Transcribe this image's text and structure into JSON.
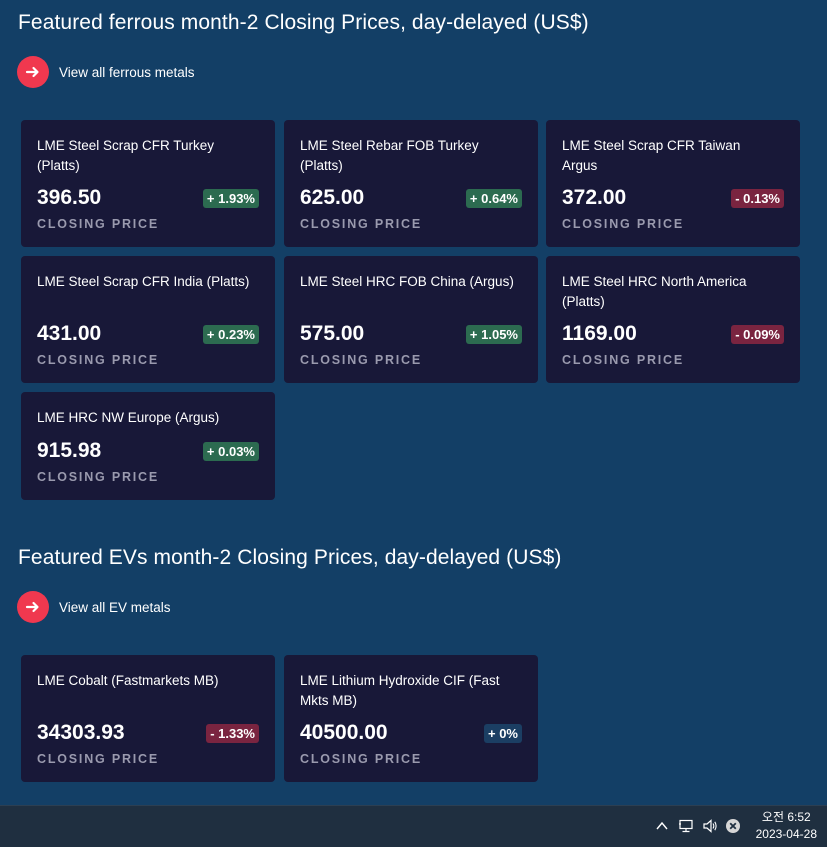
{
  "ferrous": {
    "title": "Featured ferrous month-2 Closing Prices, day-delayed (US$)",
    "link_label": "View all ferrous metals",
    "cards": [
      {
        "name": "LME Steel Scrap CFR Turkey (Platts)",
        "price": "396.50",
        "change": "+ 1.93%",
        "direction": "up",
        "closing_label": "CLOSING PRICE"
      },
      {
        "name": "LME Steel Rebar FOB Turkey (Platts)",
        "price": "625.00",
        "change": "+ 0.64%",
        "direction": "up",
        "closing_label": "CLOSING PRICE"
      },
      {
        "name": "LME Steel Scrap CFR Taiwan Argus",
        "price": "372.00",
        "change": "- 0.13%",
        "direction": "down",
        "closing_label": "CLOSING PRICE"
      },
      {
        "name": "LME Steel Scrap CFR India (Platts)",
        "price": "431.00",
        "change": "+ 0.23%",
        "direction": "up",
        "closing_label": "CLOSING PRICE"
      },
      {
        "name": "LME Steel HRC FOB China (Argus)",
        "price": "575.00",
        "change": "+ 1.05%",
        "direction": "up",
        "closing_label": "CLOSING PRICE"
      },
      {
        "name": "LME Steel HRC North America (Platts)",
        "price": "1169.00",
        "change": "- 0.09%",
        "direction": "down",
        "closing_label": "CLOSING PRICE"
      },
      {
        "name": "LME HRC NW Europe (Argus)",
        "price": "915.98",
        "change": "+ 0.03%",
        "direction": "up",
        "closing_label": "CLOSING PRICE"
      }
    ]
  },
  "ev": {
    "title": "Featured EVs month-2 Closing Prices, day-delayed (US$)",
    "link_label": "View all EV metals",
    "cards": [
      {
        "name": "LME Cobalt (Fastmarkets MB)",
        "price": "34303.93",
        "change": "- 1.33%",
        "direction": "down",
        "closing_label": "CLOSING PRICE"
      },
      {
        "name": "LME Lithium Hydroxide CIF (Fast Mkts MB)",
        "price": "40500.00",
        "change": "+ 0%",
        "direction": "flat",
        "closing_label": "CLOSING PRICE"
      }
    ]
  },
  "colors": {
    "accent": "#f0384f",
    "background": "#133f66",
    "card": "#181838",
    "up": "#2c6b50",
    "down": "#7a2440"
  },
  "taskbar": {
    "icons": [
      "chevron-up-icon",
      "network-icon",
      "volume-icon",
      "close-circle-icon"
    ],
    "time": "오전 6:52",
    "date": "2023-04-28"
  }
}
